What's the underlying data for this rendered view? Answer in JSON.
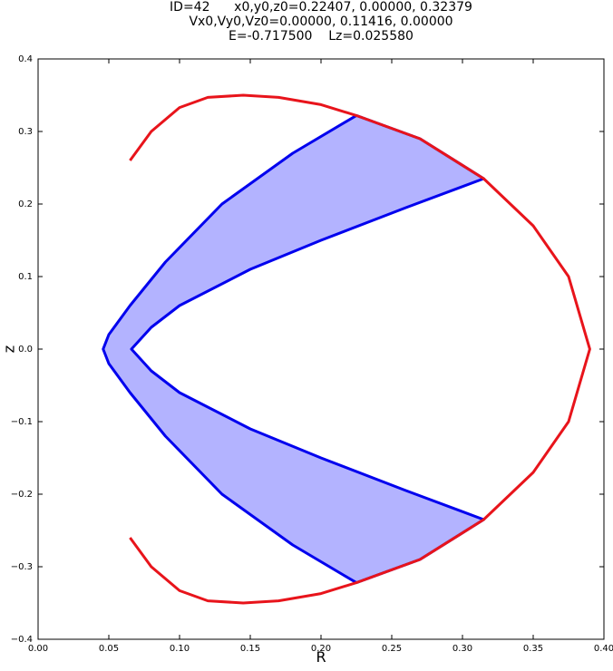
{
  "chart_data": {
    "type": "line",
    "title": [
      "ID=42      x0,y0,z0=0.22407, 0.00000, 0.32379",
      "Vx0,Vy0,Vz0=0.00000, 0.11416, 0.00000",
      "E=-0.717500    Lz=0.025580"
    ],
    "x_label": "R",
    "y_label": "z",
    "xlim": [
      0,
      0.4
    ],
    "ylim": [
      -0.4,
      0.4
    ],
    "xticks": [
      {
        "value": 0,
        "label": "0.00"
      },
      0.05,
      {
        "value": 0.1,
        "label": "0.10"
      },
      0.15,
      {
        "value": 0.2,
        "label": "0.20"
      },
      0.25,
      {
        "value": 0.3,
        "label": "0.30"
      },
      0.35,
      {
        "value": 0.4,
        "label": "0.40"
      }
    ],
    "yticks": [
      {
        "value": -0.4,
        "label": "−0.4"
      },
      {
        "value": -0.3,
        "label": "−0.3"
      },
      {
        "value": -0.2,
        "label": "−0.2"
      },
      {
        "value": -0.1,
        "label": "−0.1"
      },
      {
        "value": 0,
        "label": "0.0"
      },
      0.1,
      0.2,
      0.3,
      0.4
    ],
    "series": [
      {
        "color": "#0000ee",
        "fill": "#9a9aff",
        "x": [
          0.225,
          0.18,
          0.13,
          0.09,
          0.065,
          0.05,
          0.046,
          0.05,
          0.065,
          0.09,
          0.13,
          0.18,
          0.225,
          0.27,
          0.315,
          0.26,
          0.2,
          0.15,
          0.1,
          0.08,
          0.066,
          0.08,
          0.1,
          0.15,
          0.2,
          0.26,
          0.315,
          0.27,
          0.225
        ],
        "y": [
          0.322,
          0.27,
          0.2,
          0.12,
          0.06,
          0.02,
          0,
          -0.02,
          -0.06,
          -0.12,
          -0.2,
          -0.27,
          -0.322,
          -0.29,
          -0.235,
          -0.195,
          -0.15,
          -0.11,
          -0.06,
          -0.03,
          0,
          0.03,
          0.06,
          0.11,
          0.15,
          0.195,
          0.235,
          0.29,
          0.322
        ]
      },
      {
        "color": "#e8141b",
        "x": [
          0.065,
          0.08,
          0.1,
          0.12,
          0.145,
          0.17,
          0.2,
          0.225,
          0.27,
          0.315,
          0.35,
          0.375,
          0.39,
          0.375,
          0.35,
          0.315,
          0.27,
          0.225,
          0.2,
          0.17,
          0.145,
          0.12,
          0.1,
          0.08,
          0.065
        ],
        "y": [
          0.26,
          0.3,
          0.333,
          0.347,
          0.35,
          0.347,
          0.337,
          0.322,
          0.29,
          0.235,
          0.17,
          0.1,
          0,
          -0.1,
          -0.17,
          -0.235,
          -0.29,
          -0.322,
          -0.337,
          -0.347,
          -0.35,
          -0.347,
          -0.333,
          -0.3,
          -0.26
        ]
      }
    ]
  }
}
